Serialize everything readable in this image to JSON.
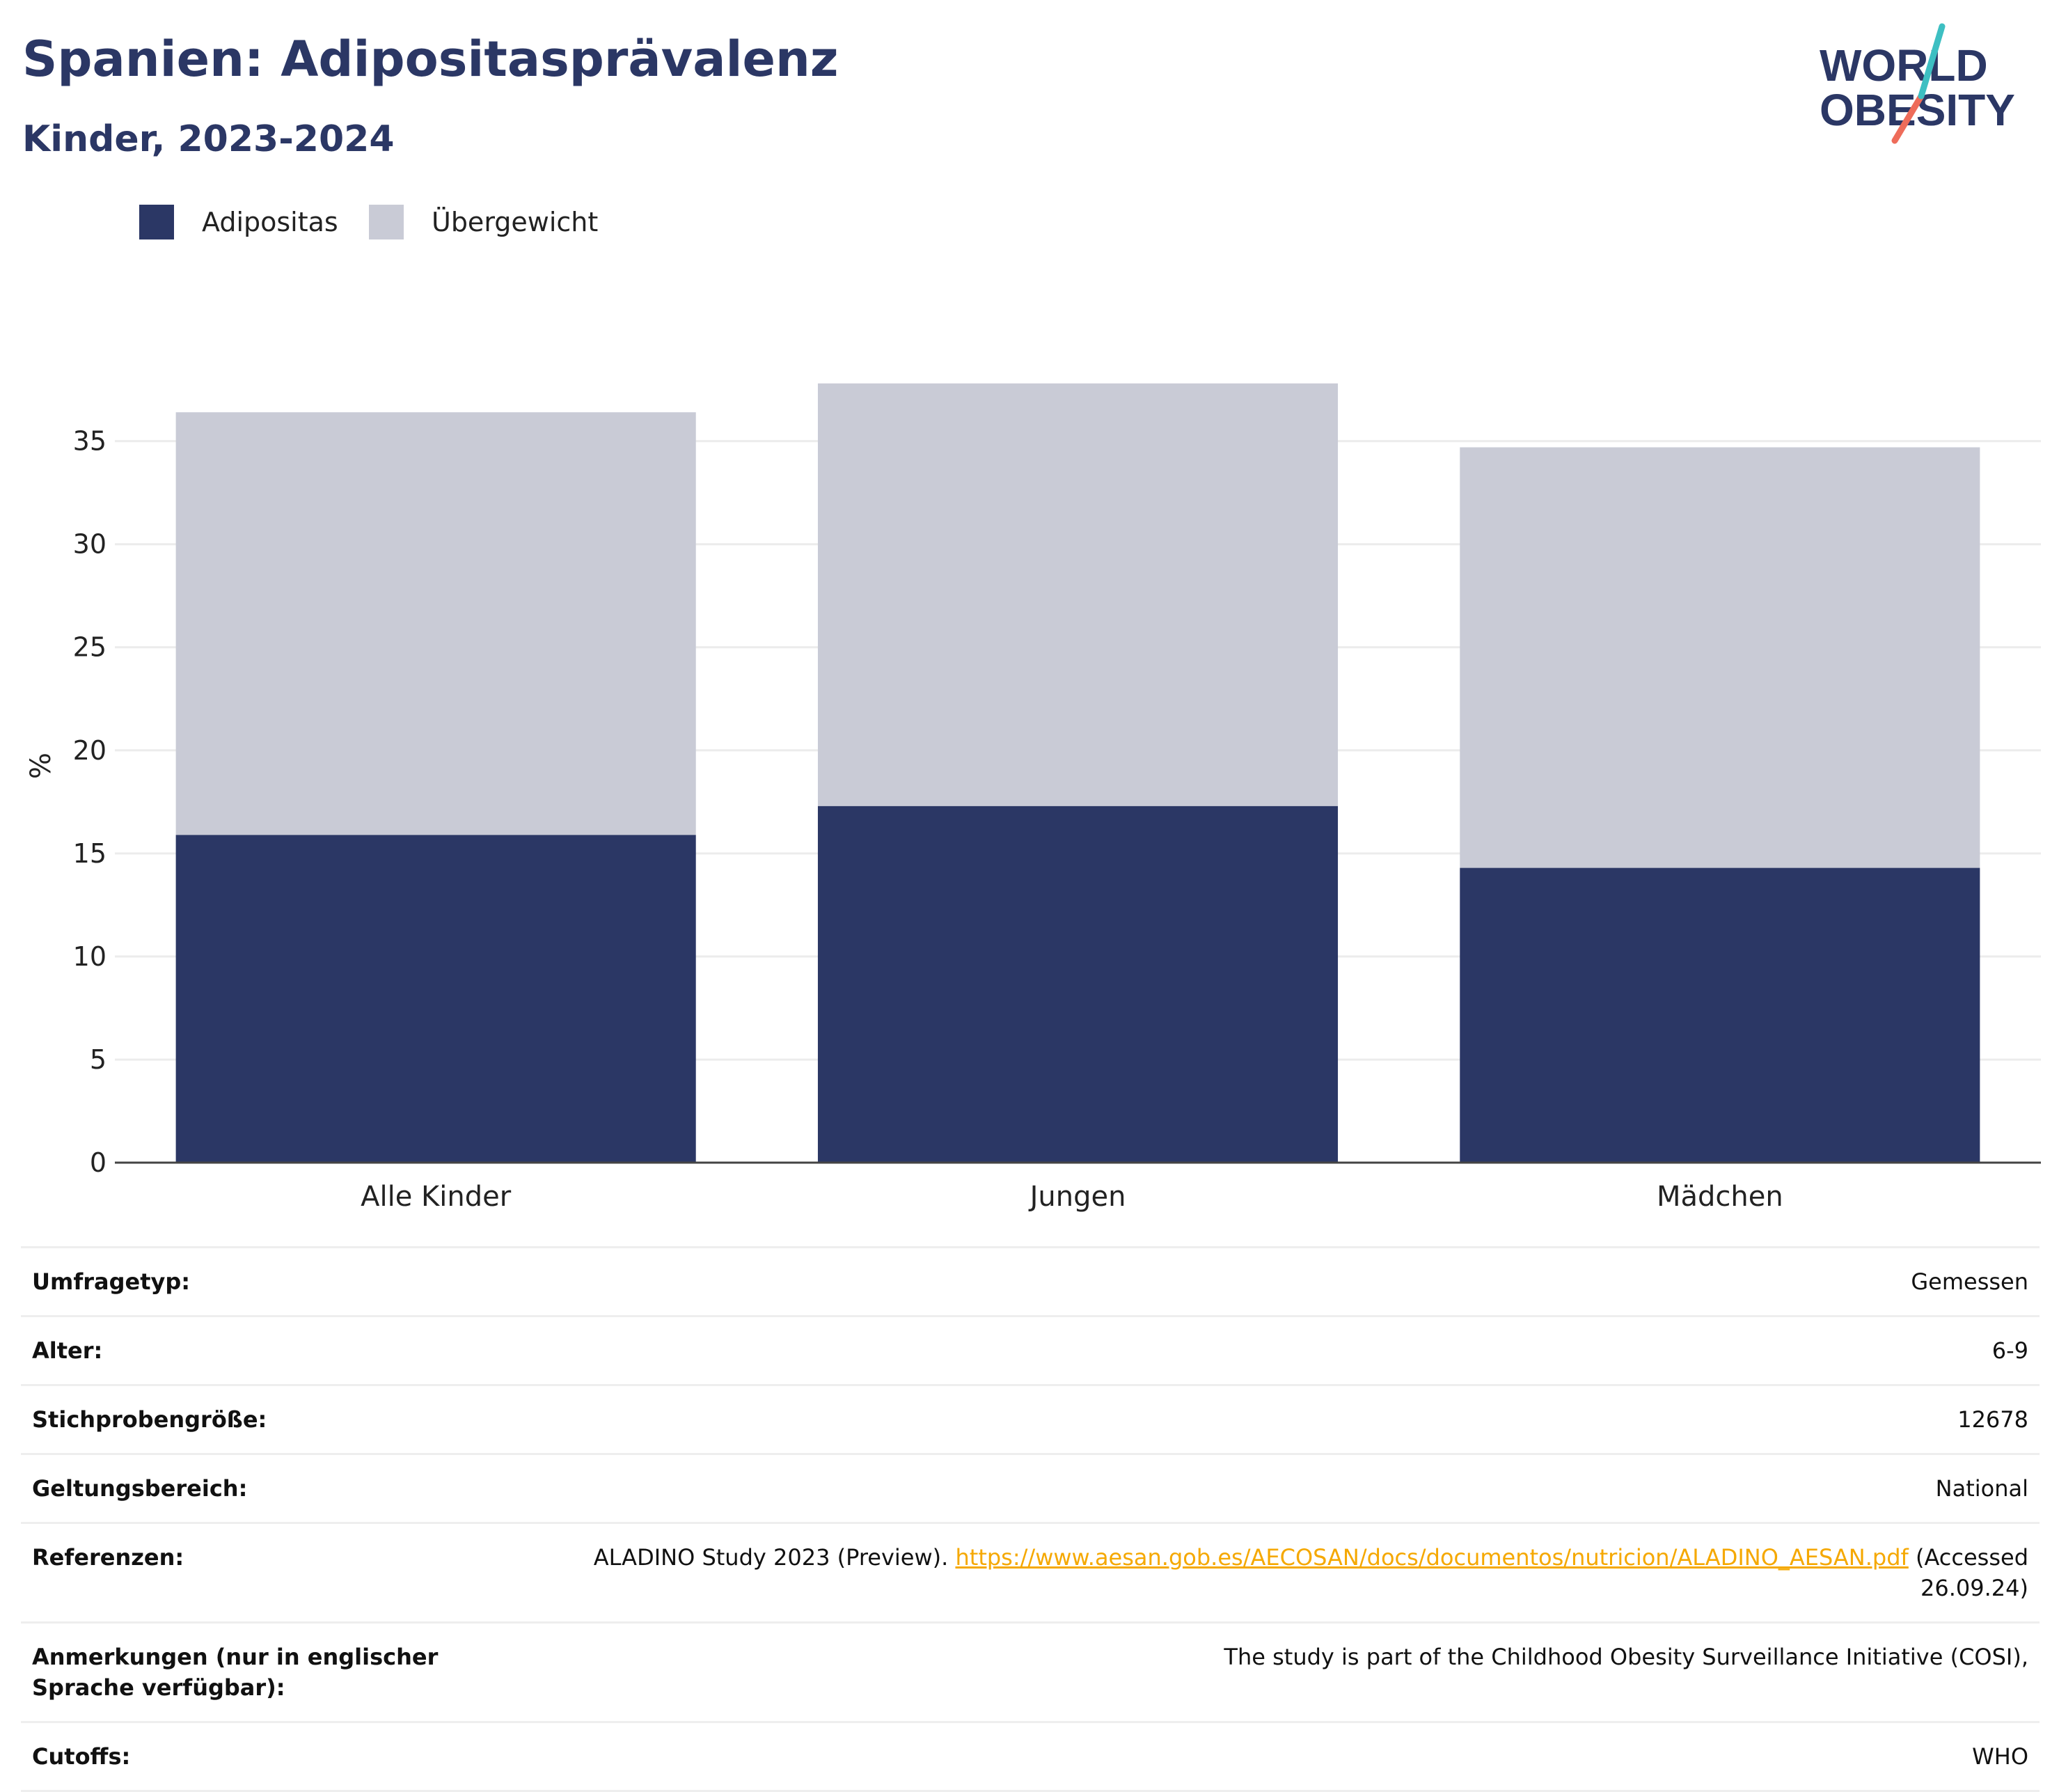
{
  "header": {
    "title": "Spanien: Adipositasprävalenz",
    "subtitle": "Kinder, 2023-2024"
  },
  "logo": {
    "line1": "WORLD",
    "line2": "OBESITY",
    "colors": {
      "text": "#2b3765",
      "accent_teal": "#3dbfc2",
      "accent_coral": "#ee6c5a"
    }
  },
  "legend": {
    "items": [
      {
        "label": "Adipositas",
        "color": "#2b3765"
      },
      {
        "label": "Übergewicht",
        "color": "#c9cbd6"
      }
    ]
  },
  "chart_data": {
    "type": "bar",
    "stacked": true,
    "categories": [
      "Alle Kinder",
      "Jungen",
      "Mädchen"
    ],
    "series": [
      {
        "name": "Adipositas",
        "values": [
          15.9,
          17.3,
          14.3
        ],
        "color": "#2b3765"
      },
      {
        "name": "Übergewicht",
        "values": [
          20.5,
          20.5,
          20.4
        ],
        "color": "#c9cbd6"
      }
    ],
    "title": "",
    "xlabel": "",
    "ylabel": "%",
    "ylim": [
      0,
      38.5
    ],
    "yticks": [
      0,
      5,
      10,
      15,
      20,
      25,
      30,
      35
    ],
    "grid": true,
    "legend_position": "top-left"
  },
  "meta": {
    "rows": [
      {
        "key": "Umfragetyp:",
        "value": "Gemessen"
      },
      {
        "key": "Alter:",
        "value": "6-9"
      },
      {
        "key": "Stichprobengröße:",
        "value": "12678"
      },
      {
        "key": "Geltungsbereich:",
        "value": "National"
      },
      {
        "key": "Anmerkungen (nur in englischer Sprache verfügbar):",
        "value": "The study is part of the Childhood Obesity Surveillance Initiative (COSI),"
      },
      {
        "key": "Cutoffs:",
        "value": "WHO"
      }
    ],
    "references": {
      "key": "Referenzen:",
      "prefix": "ALADINO Study 2023 (Preview).",
      "link": "https://www.aesan.gob.es/AECOSAN/docs/documentos/nutricion/ALADINO_AESAN.pdf",
      "suffix": "(Accessed 26.09.24)"
    }
  }
}
